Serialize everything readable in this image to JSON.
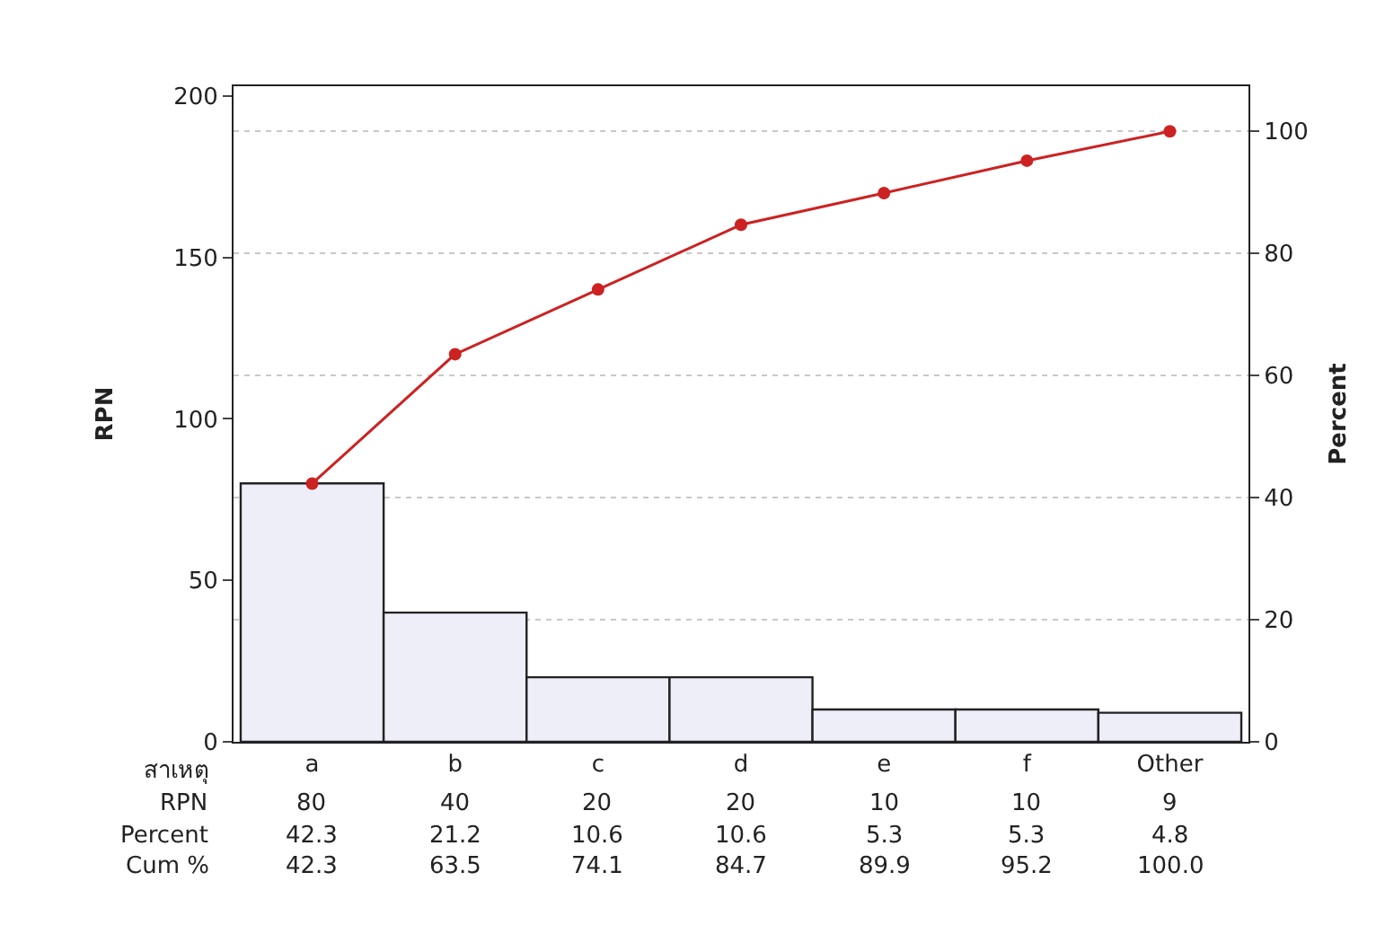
{
  "chart_data": {
    "type": "bar",
    "ylabel": "RPN",
    "y2label": "Percent",
    "xlabel": "สาเหตุ",
    "categories": [
      "a",
      "b",
      "c",
      "d",
      "e",
      "f",
      "Other"
    ],
    "series": [
      {
        "name": "RPN",
        "color": "#eeeef8",
        "values": [
          80,
          40,
          20,
          20,
          10,
          10,
          9
        ],
        "value_labels": [
          "80",
          "40",
          "20",
          "20",
          "10",
          "10",
          "9"
        ]
      },
      {
        "type": "line",
        "axis": "y2",
        "color": "#cc2222",
        "values": [
          42.3,
          63.5,
          74.1,
          84.7,
          89.9,
          95.2,
          100
        ],
        "value_labels": [
          "42.3",
          "63.5",
          "74.1",
          "84.7",
          "89.9",
          "95.2",
          "100.0"
        ]
      }
    ],
    "annotations": [
      "Percent",
      "42.3",
      "21.2",
      "10.6",
      "10.6",
      "5.3",
      "5.3",
      "4.8",
      "Cum %"
    ],
    "ylim": [
      0,
      203
    ],
    "yticks": [
      0,
      50,
      100,
      150,
      200
    ],
    "y2lim": [
      0,
      107.4
    ],
    "y2ticks": [
      0,
      20,
      40,
      60,
      80,
      100
    ],
    "grid": true,
    "marker": "circle",
    "line_style": "solid",
    "legend": false
  }
}
